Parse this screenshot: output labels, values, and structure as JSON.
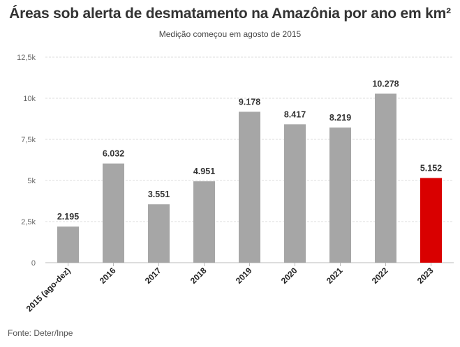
{
  "header": {
    "title": "Áreas sob alerta de desmatamento na Amazônia por ano em km²",
    "subtitle": "Medição começou em agosto de 2015"
  },
  "footer": {
    "source": "Fonte: Deter/Inpe"
  },
  "chart_data": {
    "type": "bar",
    "title": "Áreas sob alerta de desmatamento na Amazônia por ano em km²",
    "subtitle": "Medição começou em agosto de 2015",
    "categories": [
      "2015 (ago-dez)",
      "2016",
      "2017",
      "2018",
      "2019",
      "2020",
      "2021",
      "2022",
      "2023"
    ],
    "values": [
      2195,
      6032,
      3551,
      4951,
      9178,
      8417,
      8219,
      10278,
      5152
    ],
    "data_labels": [
      "2.195",
      "6.032",
      "3.551",
      "4.951",
      "9.178",
      "8.417",
      "8.219",
      "10.278",
      "5.152"
    ],
    "xlabel": "",
    "ylabel": "",
    "ylim": [
      0,
      12500
    ],
    "yticks": [
      0,
      2500,
      5000,
      7500,
      10000,
      12500
    ],
    "ytick_labels": [
      "0",
      "2,5k",
      "5k",
      "7,5k",
      "10k",
      "12,5k"
    ],
    "grid": true,
    "colors": {
      "default": "#a6a6a6",
      "highlight": "#d90000",
      "grid": "#dcdcdc"
    },
    "highlight_category": "2023"
  }
}
